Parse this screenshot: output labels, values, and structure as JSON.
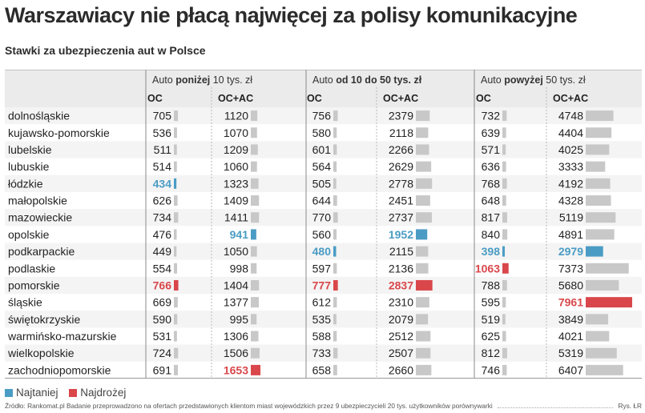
{
  "title": "Warszawiacy nie płacą najwięcej za polisy komunikacyjne",
  "subtitle": "Stawki za ubezpieczenia aut w Polsce",
  "colors": {
    "low": "#4a9cc4",
    "high": "#d9474b",
    "bar": "#c8c8c8",
    "header_bg": "#ebebeb",
    "stripe": "#f4f4f4"
  },
  "groups": [
    {
      "prefix": "Auto ",
      "bold": "poniżej",
      "suffix": " 10 tys. zł"
    },
    {
      "prefix": "Auto ",
      "bold": "od 10 do 50 tys. zł",
      "suffix": ""
    },
    {
      "prefix": "Auto ",
      "bold": "powyżej",
      "suffix": " 50 tys. zł"
    }
  ],
  "column_labels": [
    "OC",
    "OC+AC",
    "OC",
    "OC+AC",
    "OC",
    "OC+AC"
  ],
  "chart_data": {
    "type": "table",
    "title": "Warszawiacy nie płacą najwięcej za polisy komunikacyjne",
    "subtitle": "Stawki za ubezpieczenia aut w Polsce",
    "columns": [
      "poniżej 10 tys. zł OC",
      "poniżej 10 tys. zł OC+AC",
      "od 10 do 50 tys. zł OC",
      "od 10 do 50 tys. zł OC+AC",
      "powyżej 50 tys. zł OC",
      "powyżej 50 tys. zł OC+AC"
    ],
    "rows": [
      {
        "region": "dolnośląskie",
        "values": [
          705,
          1120,
          756,
          2379,
          732,
          4748
        ]
      },
      {
        "region": "kujawsko-pomorskie",
        "values": [
          536,
          1070,
          580,
          2118,
          639,
          4404
        ]
      },
      {
        "region": "lubelskie",
        "values": [
          511,
          1209,
          601,
          2266,
          571,
          4025
        ]
      },
      {
        "region": "lubuskie",
        "values": [
          514,
          1060,
          564,
          2629,
          636,
          3333
        ]
      },
      {
        "region": "łódzkie",
        "values": [
          434,
          1323,
          505,
          2778,
          768,
          4192
        ]
      },
      {
        "region": "małopolskie",
        "values": [
          626,
          1409,
          644,
          2451,
          648,
          4328
        ]
      },
      {
        "region": "mazowieckie",
        "values": [
          734,
          1411,
          770,
          2737,
          817,
          5119
        ]
      },
      {
        "region": "opolskie",
        "values": [
          476,
          941,
          560,
          1952,
          840,
          4891
        ]
      },
      {
        "region": "podkarpackie",
        "values": [
          449,
          1050,
          480,
          2115,
          398,
          2979
        ]
      },
      {
        "region": "podlaskie",
        "values": [
          554,
          998,
          597,
          2136,
          1063,
          7373
        ]
      },
      {
        "region": "pomorskie",
        "values": [
          766,
          1404,
          777,
          2837,
          788,
          5680
        ]
      },
      {
        "region": "śląskie",
        "values": [
          669,
          1377,
          612,
          2310,
          595,
          7961
        ]
      },
      {
        "region": "świętokrzyskie",
        "values": [
          590,
          995,
          535,
          2079,
          519,
          3849
        ]
      },
      {
        "region": "warmińsko-mazurskie",
        "values": [
          531,
          1306,
          588,
          2512,
          625,
          4021
        ]
      },
      {
        "region": "wielkopolskie",
        "values": [
          724,
          1506,
          733,
          2507,
          812,
          5319
        ]
      },
      {
        "region": "zachodniopomorskie",
        "values": [
          691,
          1653,
          658,
          2660,
          746,
          6407
        ]
      }
    ],
    "bar_scale_max": 7961,
    "highlights": {
      "lowest": [
        [
          4,
          0
        ],
        [
          7,
          1
        ],
        [
          8,
          2
        ],
        [
          7,
          3
        ],
        [
          8,
          4
        ],
        [
          8,
          5
        ]
      ],
      "highest": [
        [
          10,
          0
        ],
        [
          15,
          1
        ],
        [
          10,
          2
        ],
        [
          10,
          3
        ],
        [
          9,
          4
        ],
        [
          11,
          5
        ]
      ]
    },
    "legend": [
      "Najtaniej",
      "Najdrożej"
    ]
  },
  "legend": {
    "low": "Najtaniej",
    "high": "Najdrożej"
  },
  "footer": {
    "source": "Źródło: Rankomat.pl Badanie przeprowadzono na ofertach przedstawionych klientom miast wojewódzkich przez 9 ubezpieczycieli 20 tys. użytkowników porównywarki",
    "credit": "Rys. ŁR"
  }
}
